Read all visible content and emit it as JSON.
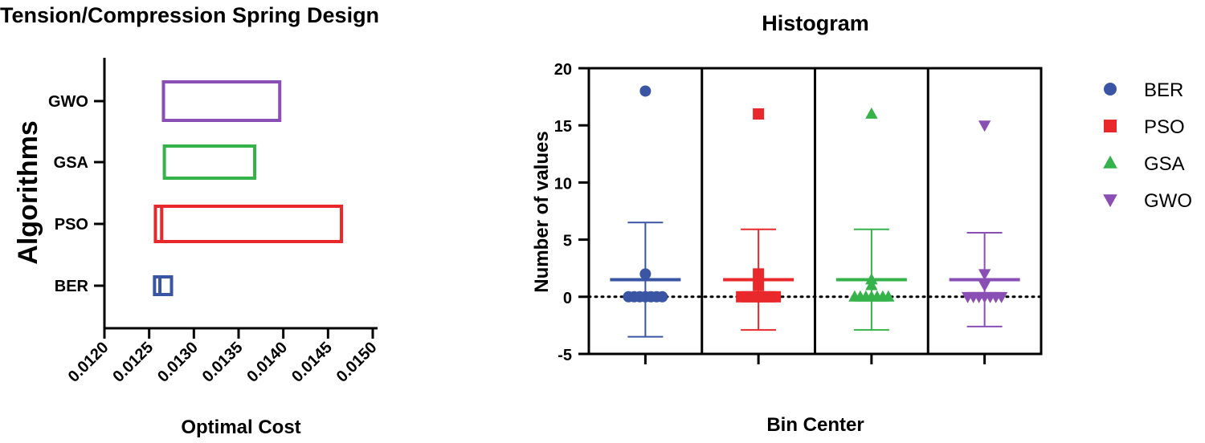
{
  "chart_data": [
    {
      "type": "floating-bar",
      "title": "Tension/Compression Spring Design",
      "xlabel": "Optimal Cost",
      "ylabel": "Algorithms",
      "xlim": [
        0.012,
        0.015
      ],
      "xticks": [
        "0.0120",
        "0.0125",
        "0.0130",
        "0.0135",
        "0.0140",
        "0.0145",
        "0.0150"
      ],
      "xtick_values": [
        0.012,
        0.0125,
        0.013,
        0.0135,
        0.014,
        0.0145,
        0.015
      ],
      "categories": [
        "BER",
        "PSO",
        "GSA",
        "GWO"
      ],
      "series": [
        {
          "name": "BER",
          "min": 0.01256,
          "mean": 0.01262,
          "max": 0.01275,
          "color": "#3a55a4"
        },
        {
          "name": "PSO",
          "min": 0.01257,
          "mean": 0.01264,
          "max": 0.01465,
          "color": "#e8282b"
        },
        {
          "name": "GSA",
          "min": 0.01267,
          "mean": 0.01267,
          "max": 0.01368,
          "color": "#36b24a"
        },
        {
          "name": "GWO",
          "min": 0.01266,
          "mean": 0.01266,
          "max": 0.01396,
          "color": "#8a4fb5"
        }
      ]
    },
    {
      "type": "scatter",
      "title": "Histogram",
      "xlabel": "Bin Center",
      "ylabel": "Number of values",
      "ylim": [
        -5,
        20
      ],
      "yticks": [
        "-5",
        "0",
        "5",
        "10",
        "15",
        "20"
      ],
      "ytick_values": [
        -5,
        0,
        5,
        10,
        15,
        20
      ],
      "groups": [
        "BER",
        "PSO",
        "GSA",
        "GWO"
      ],
      "series": [
        {
          "name": "BER",
          "marker": "circle",
          "color": "#3a55a4",
          "outlier": 18,
          "points": [
            0,
            0,
            0,
            0,
            0,
            2
          ],
          "mean": 1.5,
          "err_low": -3.5,
          "err_high": 6.5
        },
        {
          "name": "PSO",
          "marker": "square",
          "color": "#e8282b",
          "outlier": 16,
          "points": [
            0,
            0,
            0,
            1,
            2
          ],
          "mean": 1.5,
          "err_low": -2.9,
          "err_high": 5.9
        },
        {
          "name": "GSA",
          "marker": "triangle-up",
          "color": "#36b24a",
          "outlier": 16,
          "points": [
            0,
            0,
            0,
            1,
            1.5
          ],
          "mean": 1.5,
          "err_low": -2.9,
          "err_high": 5.9
        },
        {
          "name": "GWO",
          "marker": "triangle-down",
          "color": "#8a4fb5",
          "outlier": 15,
          "points": [
            0,
            0,
            0,
            1,
            2
          ],
          "mean": 1.5,
          "err_low": -2.6,
          "err_high": 5.6
        }
      ],
      "legend": [
        "BER",
        "PSO",
        "GSA",
        "GWO"
      ],
      "legend_position": "right"
    }
  ]
}
